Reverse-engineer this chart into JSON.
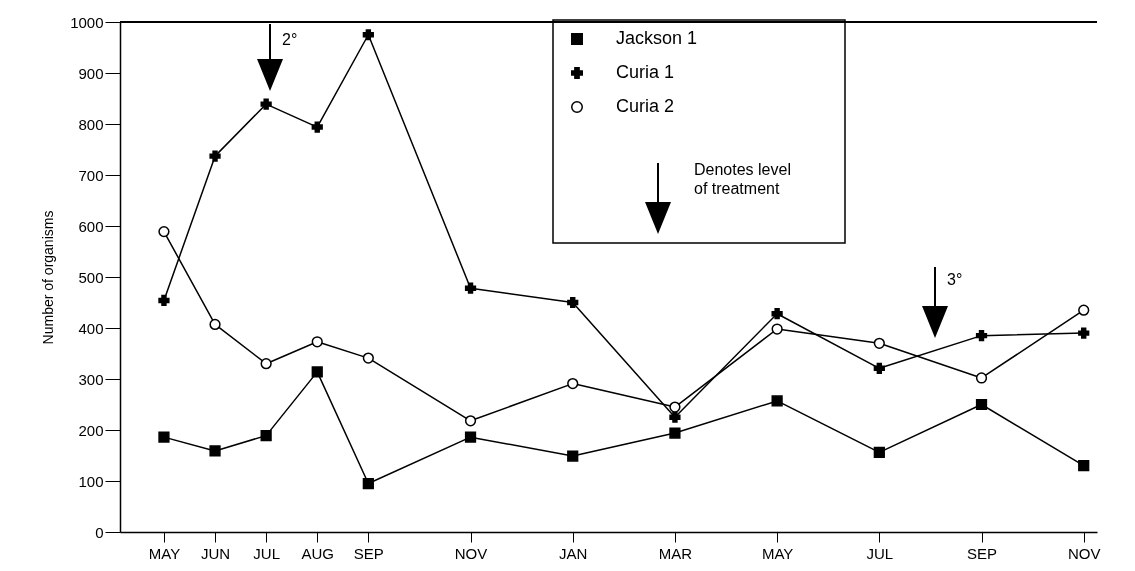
{
  "chart_data": {
    "type": "line",
    "ylabel": "Number of organisms",
    "categories": [
      "MAY",
      "JUN",
      "JUL",
      "AUG",
      "SEP",
      null,
      "NOV",
      null,
      "JAN",
      null,
      "MAR",
      null,
      "MAY",
      null,
      "JUL",
      null,
      "SEP",
      null,
      "NOV"
    ],
    "series": [
      {
        "name": "Jackson 1",
        "color": "#000000",
        "marker": "square",
        "values": [
          186,
          159,
          189,
          314,
          95,
          null,
          186,
          null,
          149,
          null,
          194,
          null,
          257,
          null,
          156,
          null,
          250,
          null,
          130
        ]
      },
      {
        "name": "Curia 1",
        "color": "#000000",
        "marker": "cross",
        "values": [
          454,
          737,
          839,
          794,
          975,
          null,
          478,
          null,
          450,
          null,
          225,
          null,
          428,
          null,
          321,
          null,
          385,
          null,
          390
        ]
      },
      {
        "name": "Curia 2",
        "color": "#000000",
        "marker": "circle",
        "values": [
          589,
          407,
          330,
          373,
          341,
          null,
          218,
          null,
          291,
          null,
          245,
          null,
          398,
          null,
          370,
          null,
          302,
          null,
          435
        ]
      }
    ],
    "ylim": [
      0,
      1000
    ],
    "yticks": [
      0,
      100,
      200,
      300,
      400,
      500,
      600,
      700,
      800,
      900,
      1000
    ],
    "grid": false,
    "legend": "top",
    "line_style": "solid",
    "annotations": [
      "2°",
      "3°",
      "Denotes level of treatment"
    ]
  }
}
